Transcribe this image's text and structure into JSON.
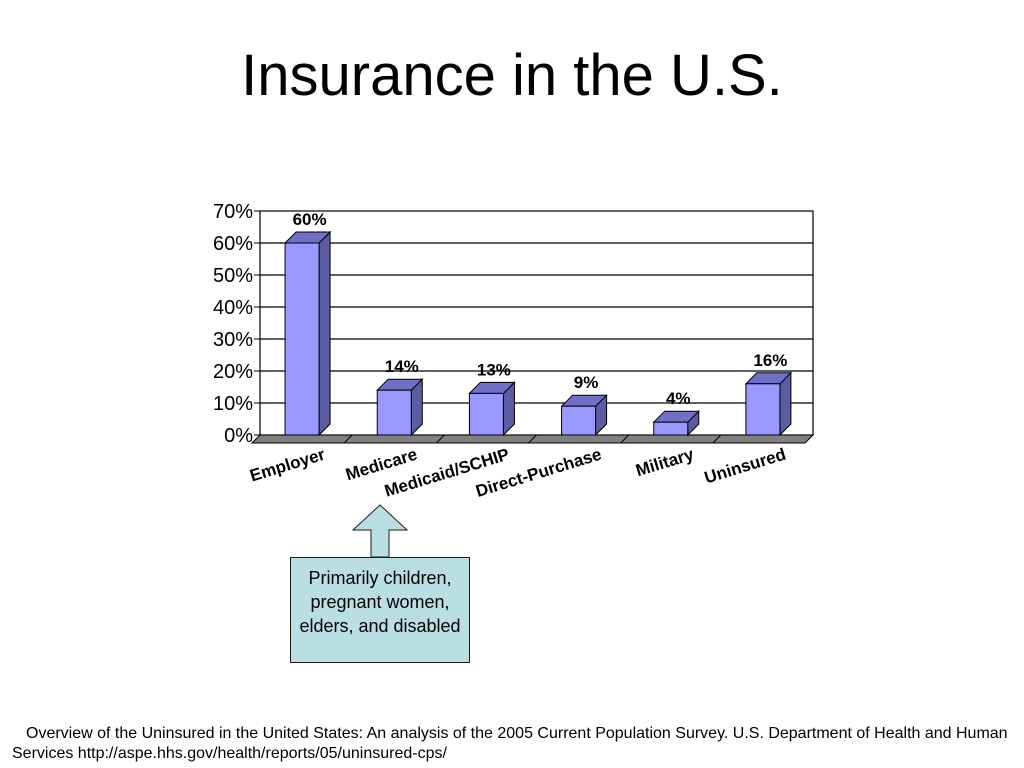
{
  "slide": {
    "title": "Insurance in the U.S.",
    "callout_text": "Primarily children, pregnant women, elders, and disabled",
    "footnote": "Overview of the Uninsured in the United States: An analysis of the 2005 Current Population Survey. U.S. Department of Health and Human Services http://aspe.hhs.gov/health/reports/05/uninsured-cps/"
  },
  "chart_data": {
    "type": "bar",
    "categories": [
      "Employer",
      "Medicare",
      "Medicaid/SCHIP",
      "Direct-Purchase",
      "Military",
      "Uninsured"
    ],
    "values": [
      60,
      14,
      13,
      9,
      4,
      16
    ],
    "data_labels": [
      "60%",
      "14%",
      "13%",
      "9%",
      "4%",
      "16%"
    ],
    "y_ticks": [
      "0%",
      "10%",
      "20%",
      "30%",
      "40%",
      "50%",
      "60%",
      "70%"
    ],
    "ylim": [
      0,
      70
    ],
    "grid": true,
    "bar_color": "#9999ff",
    "bar_side_color": "#5c5ca3",
    "bar_top_color": "#7070c8",
    "floor_color": "#808080"
  }
}
